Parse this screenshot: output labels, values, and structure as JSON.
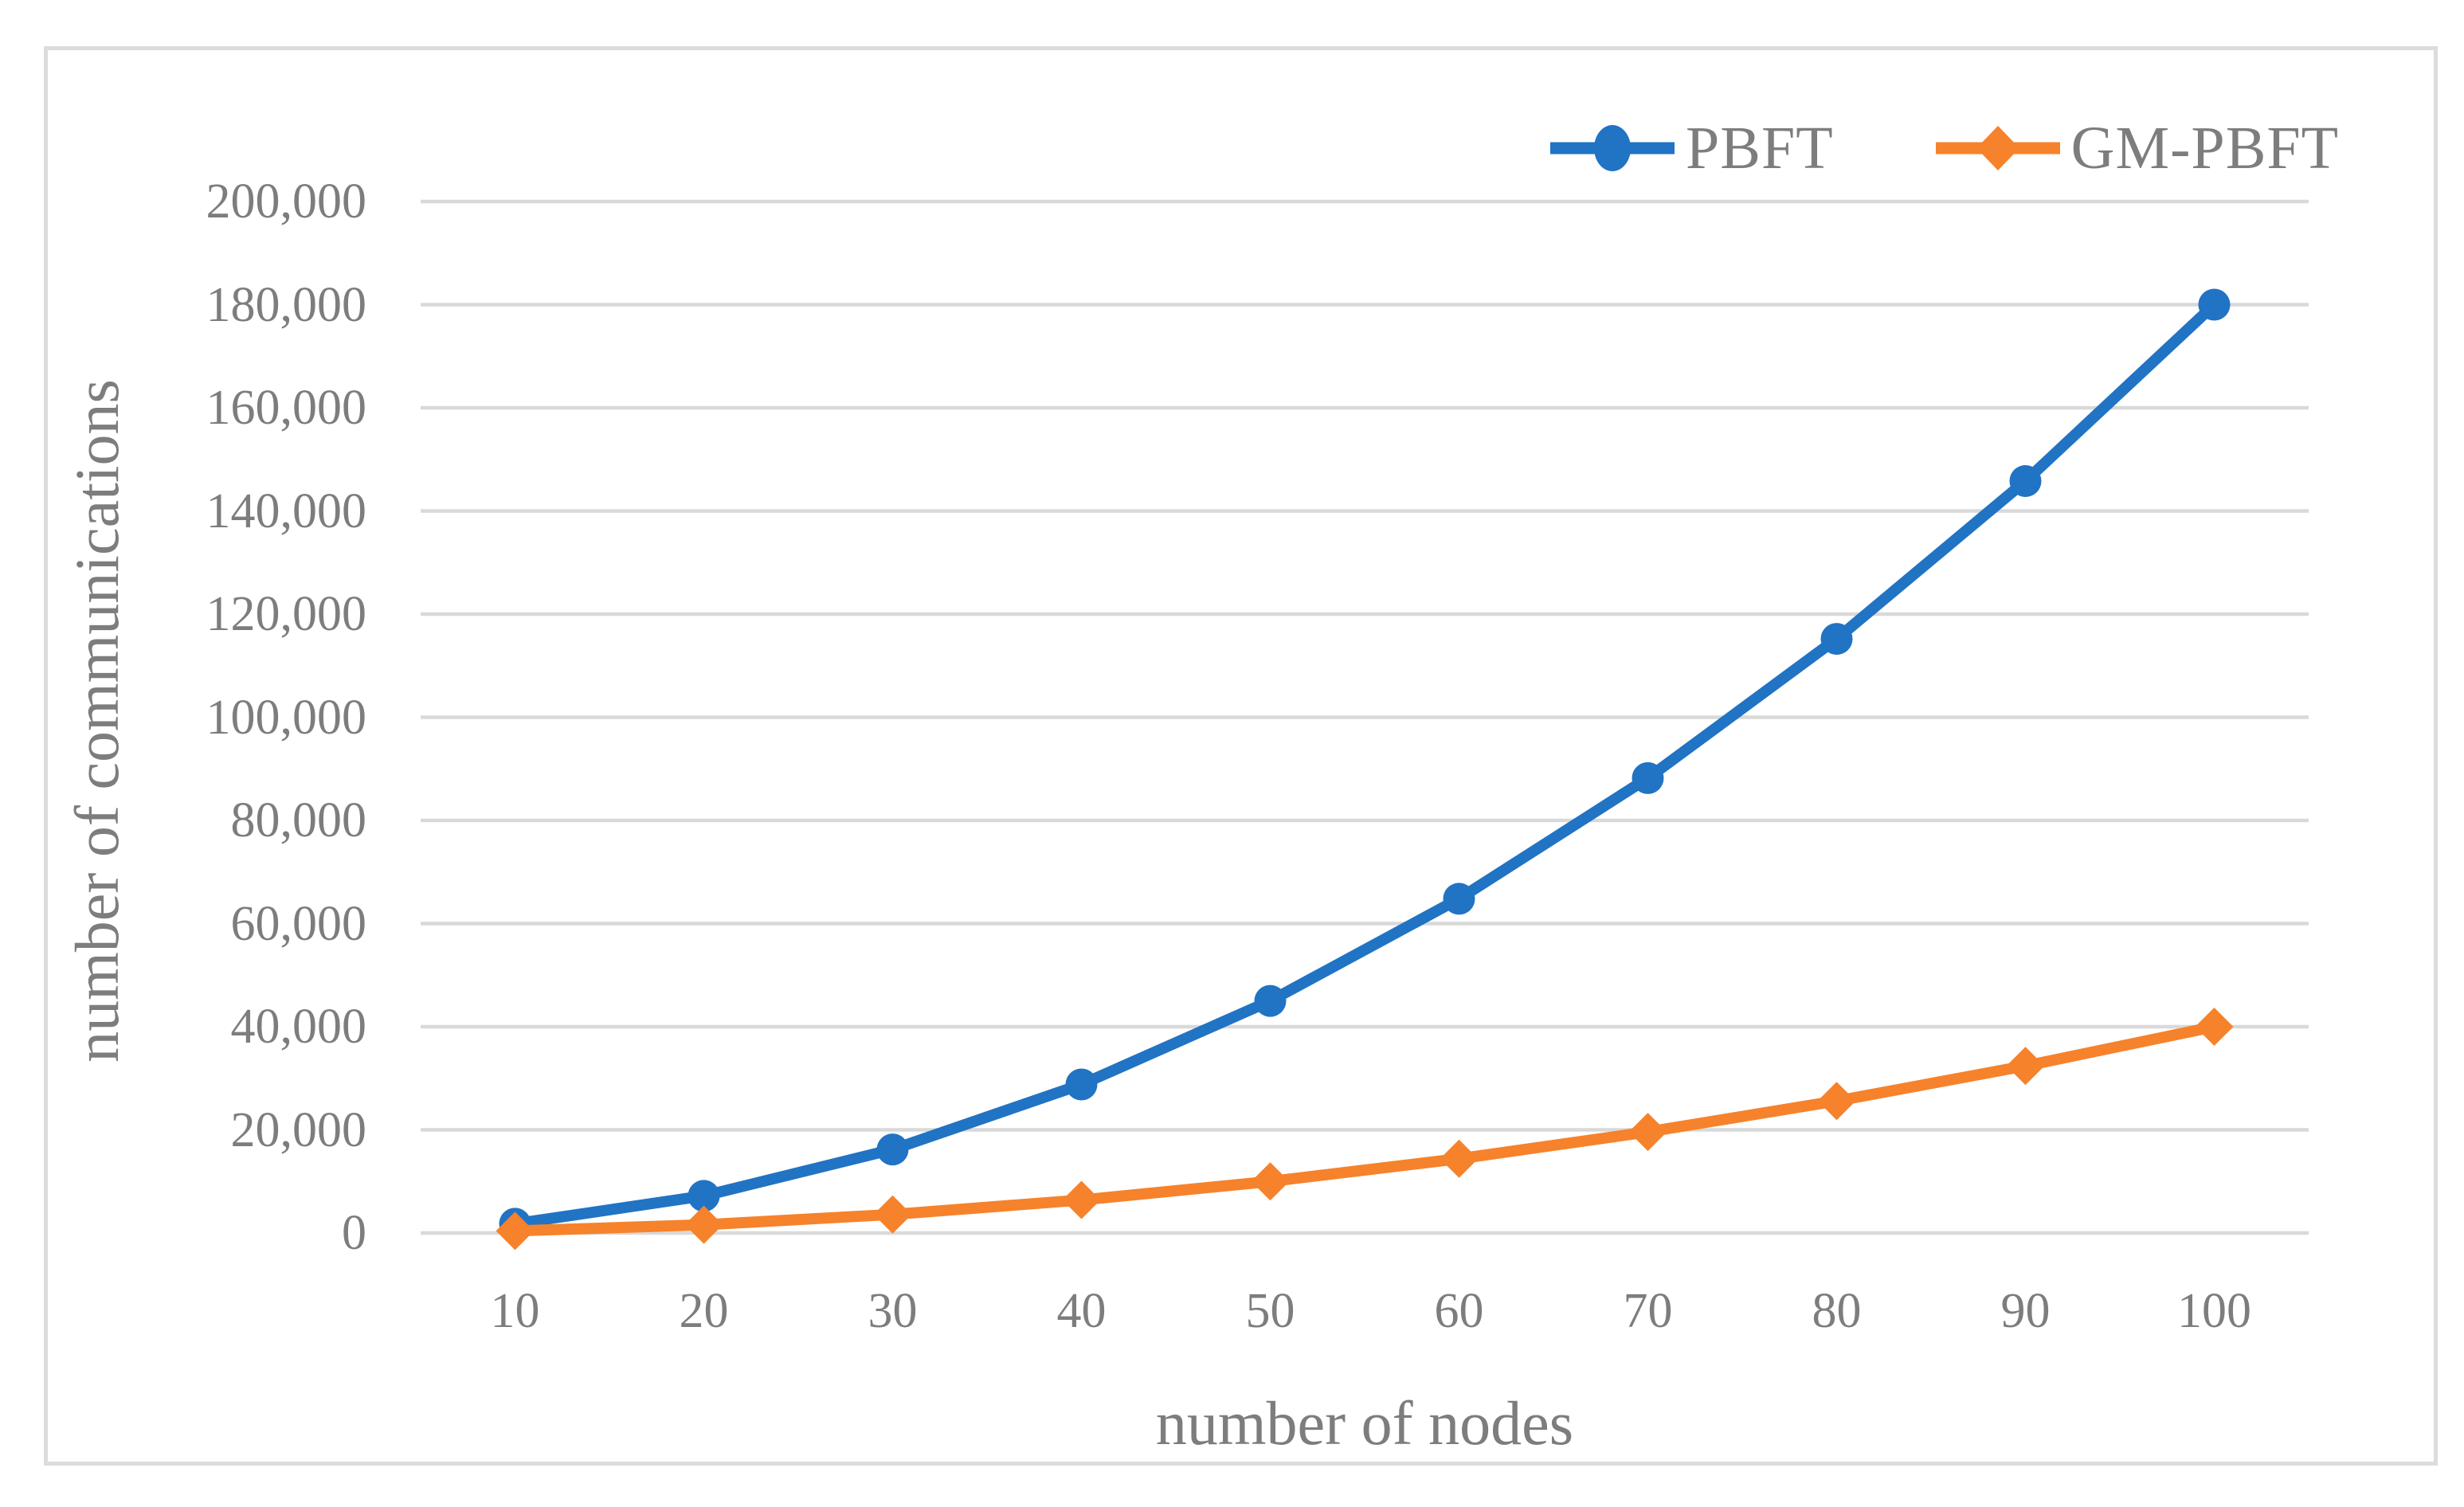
{
  "chart_data": {
    "type": "line",
    "title": "",
    "xlabel": "number of nodes",
    "ylabel": "number of communications",
    "x": [
      10,
      20,
      30,
      40,
      50,
      60,
      70,
      80,
      90,
      100
    ],
    "x_tick_labels": [
      "10",
      "20",
      "30",
      "40",
      "50",
      "60",
      "70",
      "80",
      "90",
      "100"
    ],
    "series": [
      {
        "name": "PBFT",
        "color": "#2173c4",
        "marker": "circle",
        "values": [
          1800,
          7200,
          16200,
          28800,
          45000,
          64800,
          88200,
          115200,
          145800,
          180000
        ]
      },
      {
        "name": "GM-PBFT",
        "color": "#f6822c",
        "marker": "diamond",
        "values": [
          400,
          1600,
          3600,
          6400,
          10000,
          14400,
          19600,
          25600,
          32400,
          40000
        ]
      }
    ],
    "y_axis": {
      "min": 0,
      "max": 200000,
      "step": 20000,
      "tick_labels": [
        "0",
        "20,000",
        "40,000",
        "60,000",
        "80,000",
        "100,000",
        "120,000",
        "140,000",
        "160,000",
        "180,000",
        "200,000"
      ]
    },
    "grid": "horizontal",
    "legend_position": "top-right",
    "colors": {
      "text": "#7d7d7d",
      "gridline": "#d9d9d9",
      "frame_border": "#dcdcdc",
      "background": "#ffffff"
    }
  }
}
